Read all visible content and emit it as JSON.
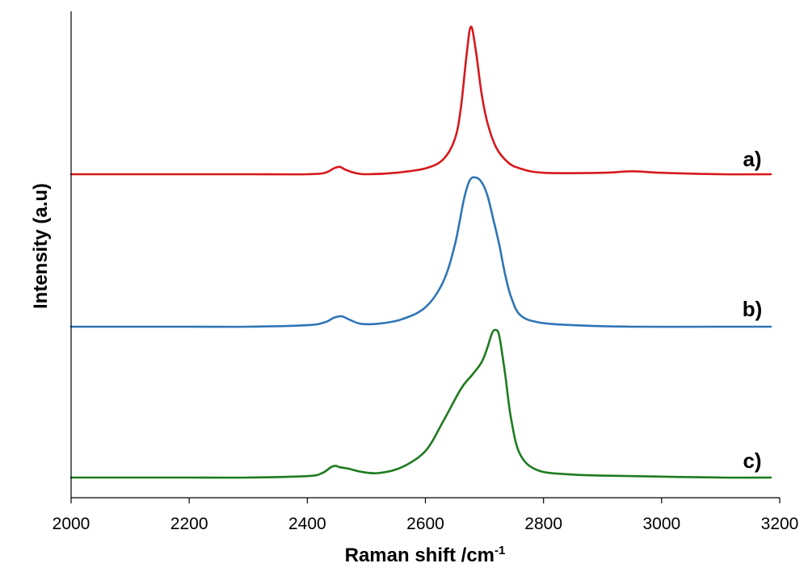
{
  "chart_data": {
    "type": "line",
    "title": "",
    "xlabel": "Raman shift /cm",
    "xlabel_superscript": "-1",
    "ylabel": "Intensity (a.u)",
    "xlim": [
      2000,
      3200
    ],
    "x_ticks": [
      2000,
      2200,
      2400,
      2600,
      2800,
      3000,
      3200
    ],
    "y_ticks_shown": false,
    "grid": false,
    "legend": "none",
    "series": [
      {
        "name": "a)",
        "color": "#d7191c",
        "baseline_offset": 2.0,
        "x": [
          2000,
          2100,
          2200,
          2300,
          2400,
          2430,
          2445,
          2455,
          2465,
          2480,
          2500,
          2550,
          2600,
          2630,
          2650,
          2660,
          2670,
          2677,
          2685,
          2695,
          2705,
          2720,
          2740,
          2760,
          2800,
          2900,
          2950,
          3000,
          3100,
          3185
        ],
        "y": [
          0.0,
          0.0,
          0.0,
          0.0,
          0.0,
          0.01,
          0.04,
          0.05,
          0.03,
          0.01,
          0.0,
          0.01,
          0.04,
          0.1,
          0.24,
          0.45,
          0.82,
          1.0,
          0.85,
          0.55,
          0.35,
          0.18,
          0.08,
          0.04,
          0.01,
          0.01,
          0.02,
          0.01,
          0.0,
          0.0
        ]
      },
      {
        "name": "b)",
        "color": "#2e75b6",
        "baseline_offset": 1.0,
        "x": [
          2000,
          2100,
          2200,
          2300,
          2400,
          2430,
          2445,
          2458,
          2470,
          2490,
          2520,
          2560,
          2600,
          2630,
          2650,
          2665,
          2675,
          2685,
          2695,
          2705,
          2715,
          2725,
          2735,
          2745,
          2760,
          2790,
          2850,
          2950,
          3100,
          3185
        ],
        "y": [
          0.0,
          0.0,
          0.0,
          0.0,
          0.01,
          0.03,
          0.06,
          0.07,
          0.05,
          0.02,
          0.02,
          0.05,
          0.13,
          0.3,
          0.55,
          0.85,
          0.98,
          1.0,
          0.97,
          0.88,
          0.72,
          0.55,
          0.35,
          0.2,
          0.08,
          0.03,
          0.01,
          0.0,
          0.0,
          0.0
        ]
      },
      {
        "name": "c)",
        "color": "#1e7b1e",
        "baseline_offset": 0.0,
        "x": [
          2000,
          2100,
          2200,
          2300,
          2400,
          2425,
          2440,
          2448,
          2455,
          2470,
          2490,
          2520,
          2560,
          2600,
          2630,
          2660,
          2680,
          2695,
          2705,
          2712,
          2718,
          2725,
          2735,
          2745,
          2760,
          2790,
          2850,
          2950,
          3100,
          3185
        ],
        "y": [
          0.0,
          0.0,
          0.0,
          0.0,
          0.01,
          0.03,
          0.07,
          0.08,
          0.07,
          0.06,
          0.04,
          0.03,
          0.07,
          0.18,
          0.38,
          0.6,
          0.7,
          0.78,
          0.88,
          0.97,
          1.0,
          0.96,
          0.7,
          0.4,
          0.16,
          0.05,
          0.02,
          0.01,
          0.0,
          0.0
        ]
      }
    ]
  }
}
